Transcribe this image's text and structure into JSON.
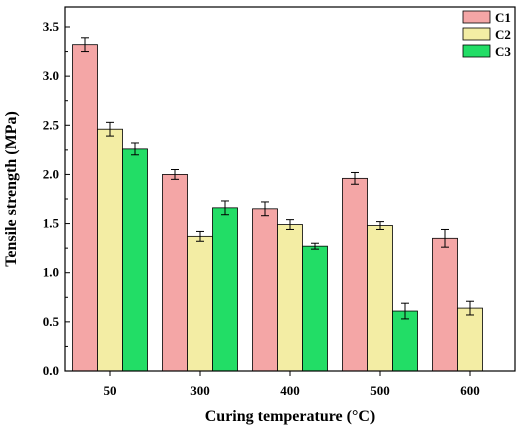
{
  "chart_data": {
    "type": "bar",
    "title": "",
    "xlabel": "Curing temperature (°C)",
    "ylabel": "Tensile strength (MPa)",
    "categories": [
      "50",
      "300",
      "400",
      "500",
      "600"
    ],
    "ylim": [
      0.0,
      3.5
    ],
    "yticks": [
      "0.0",
      "0.5",
      "1.0",
      "1.5",
      "2.0",
      "2.5",
      "3.0",
      "3.5"
    ],
    "grid": false,
    "legend_position": "top-right",
    "series": [
      {
        "name": "C1",
        "color": "#f4a6a6",
        "values": [
          3.32,
          2.0,
          1.65,
          1.96,
          1.35
        ],
        "errors": [
          0.07,
          0.05,
          0.07,
          0.06,
          0.09
        ]
      },
      {
        "name": "C2",
        "color": "#f3eda4",
        "values": [
          2.46,
          1.37,
          1.49,
          1.48,
          0.64
        ],
        "errors": [
          0.07,
          0.05,
          0.05,
          0.04,
          0.07
        ]
      },
      {
        "name": "C3",
        "color": "#22dd66",
        "values": [
          2.26,
          1.66,
          1.27,
          0.61,
          null
        ],
        "errors": [
          0.06,
          0.07,
          0.03,
          0.08,
          null
        ]
      }
    ]
  }
}
